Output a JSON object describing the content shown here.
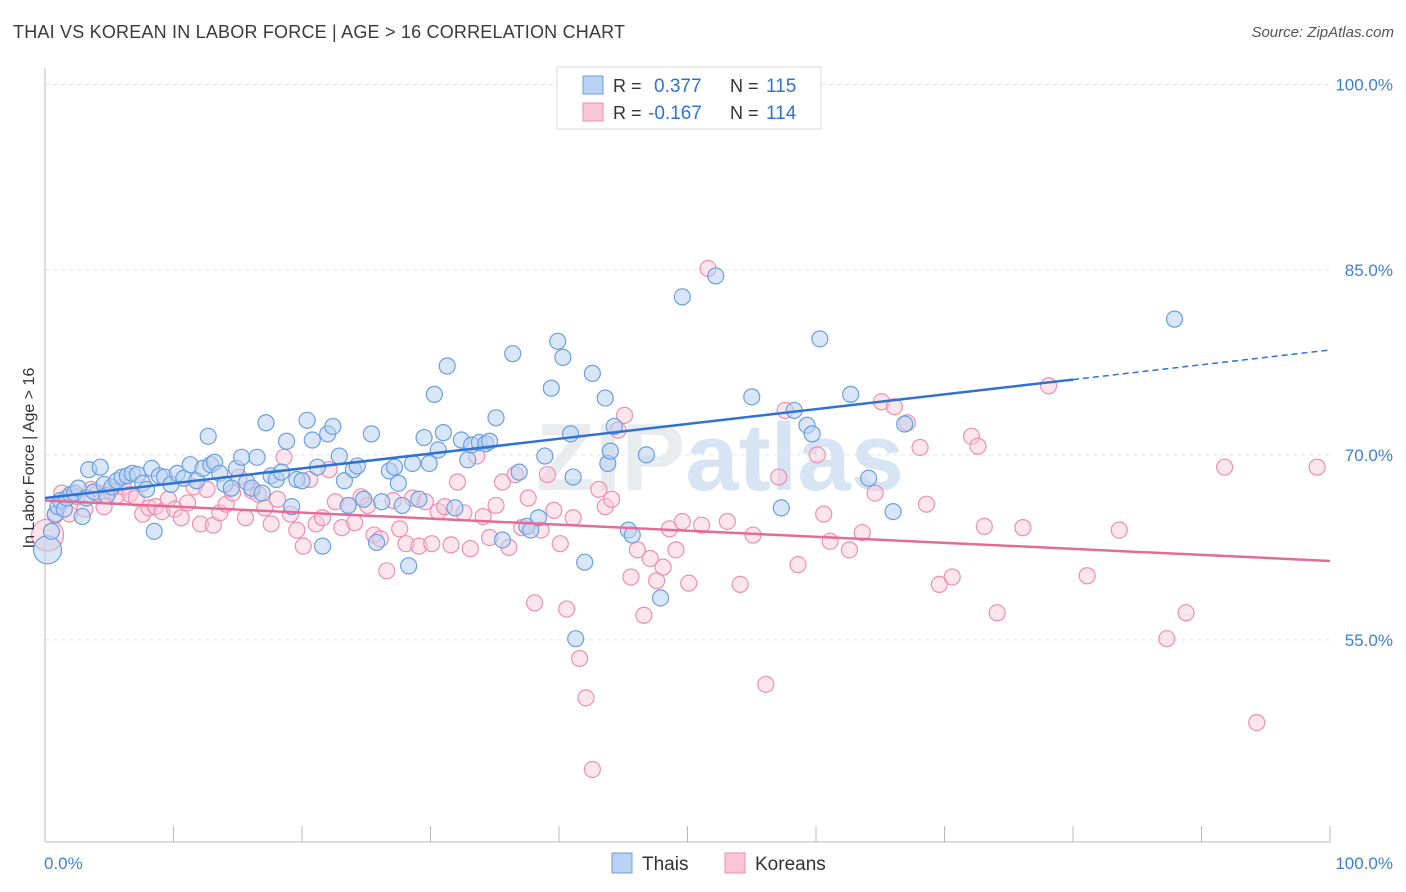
{
  "title": "THAI VS KOREAN IN LABOR FORCE | AGE > 16 CORRELATION CHART",
  "source": "Source: ZipAtlas.com",
  "watermark": "ZIPatlas",
  "colors": {
    "thais": "#6a9fe0",
    "thais_line": "#2f72d4",
    "koreans": "#ee8fae",
    "koreans_line": "#e46b96",
    "axis_label": "#3d7fd6",
    "grid": "#dde3ea"
  },
  "legend_top": [
    {
      "r_label": "R =",
      "r_value": "0.377",
      "n_label": "N =",
      "n_value": "115"
    },
    {
      "r_label": "R =",
      "r_value": "-0.167",
      "n_label": "N =",
      "n_value": "114"
    }
  ],
  "legend_bottom": [
    "Thais",
    "Koreans"
  ],
  "chart_data": {
    "type": "scatter",
    "title": "THAI VS KOREAN IN LABOR FORCE | AGE > 16 CORRELATION CHART",
    "xlabel": "",
    "ylabel": "In Labor Force | Age > 16",
    "xlim": [
      0,
      100
    ],
    "ylim": [
      40,
      102
    ],
    "x_tick_labels": [
      "0.0%",
      "100.0%"
    ],
    "y_ticks": [
      55,
      70,
      85,
      100
    ],
    "y_tick_labels": [
      "55.0%",
      "70.0%",
      "85.0%",
      "100.0%"
    ],
    "grid": true,
    "legend_position": "top-center",
    "series": [
      {
        "name": "Thais",
        "r": 0.377,
        "n": 115,
        "trend": {
          "x": [
            0,
            80
          ],
          "y": [
            66.5,
            76.1
          ],
          "dashed_to": [
            100,
            78.5
          ]
        },
        "points": [
          [
            0.2,
            62.3
          ],
          [
            0.5,
            63.8
          ],
          [
            0.8,
            65.2
          ],
          [
            1.0,
            65.8
          ],
          [
            1.2,
            66.3
          ],
          [
            1.5,
            65.6
          ],
          [
            1.7,
            66.5
          ],
          [
            2.0,
            66.8
          ],
          [
            2.3,
            66.9
          ],
          [
            2.6,
            67.3
          ],
          [
            2.9,
            65.0
          ],
          [
            3.2,
            66.5
          ],
          [
            3.4,
            68.8
          ],
          [
            3.8,
            67.0
          ],
          [
            4.3,
            69.0
          ],
          [
            4.6,
            67.6
          ],
          [
            4.8,
            66.7
          ],
          [
            5.2,
            67.4
          ],
          [
            5.6,
            67.9
          ],
          [
            6.0,
            68.2
          ],
          [
            6.4,
            68.3
          ],
          [
            6.8,
            68.5
          ],
          [
            7.2,
            68.4
          ],
          [
            7.6,
            67.7
          ],
          [
            7.9,
            67.2
          ],
          [
            8.3,
            68.9
          ],
          [
            8.5,
            63.8
          ],
          [
            8.9,
            68.3
          ],
          [
            9.3,
            68.2
          ],
          [
            9.8,
            67.6
          ],
          [
            10.3,
            68.5
          ],
          [
            10.8,
            68.1
          ],
          [
            11.3,
            69.2
          ],
          [
            11.8,
            67.9
          ],
          [
            12.3,
            68.9
          ],
          [
            12.7,
            71.5
          ],
          [
            12.9,
            69.2
          ],
          [
            13.2,
            69.4
          ],
          [
            13.6,
            68.5
          ],
          [
            14.0,
            67.6
          ],
          [
            14.5,
            67.3
          ],
          [
            14.9,
            68.9
          ],
          [
            15.3,
            69.8
          ],
          [
            15.7,
            67.8
          ],
          [
            16.1,
            67.3
          ],
          [
            16.5,
            69.8
          ],
          [
            16.9,
            66.9
          ],
          [
            17.2,
            72.6
          ],
          [
            17.6,
            68.3
          ],
          [
            18.0,
            68.0
          ],
          [
            18.4,
            68.6
          ],
          [
            18.8,
            71.1
          ],
          [
            19.2,
            65.8
          ],
          [
            19.6,
            68.0
          ],
          [
            20.0,
            67.9
          ],
          [
            20.4,
            72.8
          ],
          [
            20.8,
            71.2
          ],
          [
            21.2,
            69.0
          ],
          [
            21.6,
            62.6
          ],
          [
            22.0,
            71.7
          ],
          [
            22.4,
            72.3
          ],
          [
            22.9,
            69.9
          ],
          [
            23.3,
            67.9
          ],
          [
            23.6,
            65.9
          ],
          [
            24.0,
            68.8
          ],
          [
            24.3,
            69.1
          ],
          [
            24.8,
            66.4
          ],
          [
            25.4,
            71.7
          ],
          [
            25.8,
            62.9
          ],
          [
            26.2,
            66.2
          ],
          [
            26.8,
            68.7
          ],
          [
            27.2,
            69.0
          ],
          [
            27.5,
            67.7
          ],
          [
            27.8,
            65.9
          ],
          [
            28.3,
            61.0
          ],
          [
            28.6,
            69.3
          ],
          [
            29.1,
            66.4
          ],
          [
            29.5,
            71.4
          ],
          [
            29.9,
            69.3
          ],
          [
            30.3,
            74.9
          ],
          [
            30.6,
            70.4
          ],
          [
            31.0,
            71.8
          ],
          [
            31.3,
            77.2
          ],
          [
            31.9,
            65.7
          ],
          [
            32.4,
            71.2
          ],
          [
            32.9,
            69.6
          ],
          [
            33.2,
            70.8
          ],
          [
            33.8,
            71.0
          ],
          [
            34.3,
            70.9
          ],
          [
            34.6,
            71.1
          ],
          [
            35.1,
            73.0
          ],
          [
            35.6,
            63.1
          ],
          [
            36.4,
            78.2
          ],
          [
            36.9,
            68.6
          ],
          [
            37.5,
            64.2
          ],
          [
            37.8,
            63.9
          ],
          [
            38.4,
            64.9
          ],
          [
            38.9,
            69.9
          ],
          [
            39.4,
            75.4
          ],
          [
            39.9,
            79.2
          ],
          [
            40.3,
            77.9
          ],
          [
            40.9,
            71.7
          ],
          [
            41.1,
            68.2
          ],
          [
            41.3,
            55.1
          ],
          [
            42.0,
            61.3
          ],
          [
            42.6,
            76.6
          ],
          [
            43.6,
            74.6
          ],
          [
            43.8,
            69.3
          ],
          [
            44.0,
            70.3
          ],
          [
            44.3,
            72.3
          ],
          [
            45.4,
            63.9
          ],
          [
            45.7,
            63.5
          ],
          [
            46.8,
            70.0
          ],
          [
            47.9,
            58.4
          ],
          [
            49.6,
            82.8
          ],
          [
            52.2,
            84.5
          ],
          [
            55.0,
            74.7
          ],
          [
            57.3,
            65.7
          ],
          [
            58.3,
            73.6
          ],
          [
            59.3,
            72.4
          ],
          [
            59.7,
            71.7
          ],
          [
            60.3,
            79.4
          ],
          [
            62.7,
            74.9
          ],
          [
            64.1,
            68.1
          ],
          [
            66.0,
            65.4
          ],
          [
            66.9,
            72.5
          ],
          [
            87.9,
            81.0
          ]
        ]
      },
      {
        "name": "Koreans",
        "r": -0.167,
        "n": 114,
        "trend": {
          "x": [
            0,
            100
          ],
          "y": [
            66.3,
            61.4
          ]
        },
        "points": [
          [
            0.2,
            63.5
          ],
          [
            0.8,
            65.1
          ],
          [
            1.3,
            66.9
          ],
          [
            1.9,
            65.2
          ],
          [
            2.5,
            66.6
          ],
          [
            3.1,
            65.6
          ],
          [
            3.6,
            67.2
          ],
          [
            4.1,
            66.9
          ],
          [
            4.6,
            65.8
          ],
          [
            5.1,
            67.1
          ],
          [
            5.6,
            66.7
          ],
          [
            6.1,
            67.4
          ],
          [
            6.6,
            66.8
          ],
          [
            7.1,
            66.5
          ],
          [
            7.6,
            65.2
          ],
          [
            8.1,
            65.7
          ],
          [
            8.6,
            65.8
          ],
          [
            9.1,
            65.4
          ],
          [
            9.6,
            66.4
          ],
          [
            10.1,
            65.6
          ],
          [
            10.6,
            64.9
          ],
          [
            11.1,
            66.1
          ],
          [
            11.6,
            67.4
          ],
          [
            12.1,
            64.4
          ],
          [
            12.6,
            67.2
          ],
          [
            13.1,
            64.3
          ],
          [
            13.6,
            65.3
          ],
          [
            14.1,
            66.0
          ],
          [
            14.6,
            66.9
          ],
          [
            15.1,
            68.2
          ],
          [
            15.6,
            64.9
          ],
          [
            16.1,
            67.1
          ],
          [
            16.6,
            66.8
          ],
          [
            17.1,
            65.7
          ],
          [
            17.6,
            64.4
          ],
          [
            18.1,
            66.4
          ],
          [
            18.6,
            69.8
          ],
          [
            19.1,
            65.2
          ],
          [
            19.6,
            63.9
          ],
          [
            20.1,
            62.6
          ],
          [
            20.6,
            68.0
          ],
          [
            21.1,
            64.4
          ],
          [
            21.6,
            64.9
          ],
          [
            22.1,
            68.8
          ],
          [
            22.6,
            66.2
          ],
          [
            23.1,
            64.1
          ],
          [
            23.6,
            65.9
          ],
          [
            24.1,
            64.5
          ],
          [
            24.6,
            66.6
          ],
          [
            25.1,
            65.9
          ],
          [
            25.6,
            63.5
          ],
          [
            26.1,
            63.2
          ],
          [
            26.6,
            60.6
          ],
          [
            27.1,
            66.3
          ],
          [
            27.6,
            64.0
          ],
          [
            28.1,
            62.8
          ],
          [
            28.6,
            66.5
          ],
          [
            29.1,
            62.6
          ],
          [
            29.6,
            66.2
          ],
          [
            30.1,
            62.8
          ],
          [
            30.6,
            65.4
          ],
          [
            31.1,
            65.8
          ],
          [
            31.6,
            62.7
          ],
          [
            32.1,
            67.8
          ],
          [
            32.6,
            65.3
          ],
          [
            33.1,
            62.4
          ],
          [
            33.6,
            69.9
          ],
          [
            34.1,
            65.0
          ],
          [
            34.6,
            63.3
          ],
          [
            35.1,
            65.9
          ],
          [
            35.6,
            67.8
          ],
          [
            36.1,
            62.5
          ],
          [
            36.6,
            68.4
          ],
          [
            37.1,
            64.1
          ],
          [
            37.6,
            66.5
          ],
          [
            38.1,
            58.0
          ],
          [
            38.6,
            63.9
          ],
          [
            39.1,
            68.4
          ],
          [
            39.6,
            65.5
          ],
          [
            40.1,
            62.8
          ],
          [
            40.6,
            57.5
          ],
          [
            41.1,
            64.9
          ],
          [
            41.6,
            53.5
          ],
          [
            42.1,
            50.3
          ],
          [
            42.6,
            44.5
          ],
          [
            43.1,
            67.2
          ],
          [
            43.6,
            65.8
          ],
          [
            44.1,
            66.4
          ],
          [
            44.6,
            72.0
          ],
          [
            45.1,
            73.2
          ],
          [
            45.6,
            60.1
          ],
          [
            46.1,
            62.3
          ],
          [
            46.6,
            57.0
          ],
          [
            47.1,
            61.6
          ],
          [
            47.6,
            59.8
          ],
          [
            48.1,
            60.9
          ],
          [
            48.6,
            64.0
          ],
          [
            49.1,
            62.3
          ],
          [
            49.6,
            64.6
          ],
          [
            50.1,
            59.6
          ],
          [
            51.1,
            64.3
          ],
          [
            51.6,
            85.1
          ],
          [
            53.1,
            64.6
          ],
          [
            54.1,
            59.5
          ],
          [
            55.1,
            63.5
          ],
          [
            56.1,
            51.4
          ],
          [
            57.1,
            68.2
          ],
          [
            57.6,
            73.6
          ],
          [
            58.6,
            61.1
          ],
          [
            60.1,
            70.0
          ],
          [
            60.6,
            65.2
          ],
          [
            61.1,
            63.0
          ],
          [
            62.6,
            62.3
          ],
          [
            63.6,
            63.7
          ],
          [
            64.6,
            66.9
          ],
          [
            65.1,
            74.3
          ],
          [
            66.1,
            73.9
          ],
          [
            67.1,
            72.6
          ],
          [
            68.1,
            70.6
          ],
          [
            68.6,
            66.0
          ],
          [
            69.6,
            59.5
          ],
          [
            70.6,
            60.1
          ],
          [
            72.1,
            71.5
          ],
          [
            72.6,
            70.7
          ],
          [
            73.1,
            64.2
          ],
          [
            74.1,
            57.2
          ],
          [
            76.1,
            64.1
          ],
          [
            78.1,
            75.6
          ],
          [
            81.1,
            60.2
          ],
          [
            83.6,
            63.9
          ],
          [
            87.3,
            55.1
          ],
          [
            88.8,
            57.2
          ],
          [
            91.8,
            69.0
          ],
          [
            94.3,
            48.3
          ],
          [
            99.0,
            69.0
          ]
        ]
      }
    ]
  }
}
